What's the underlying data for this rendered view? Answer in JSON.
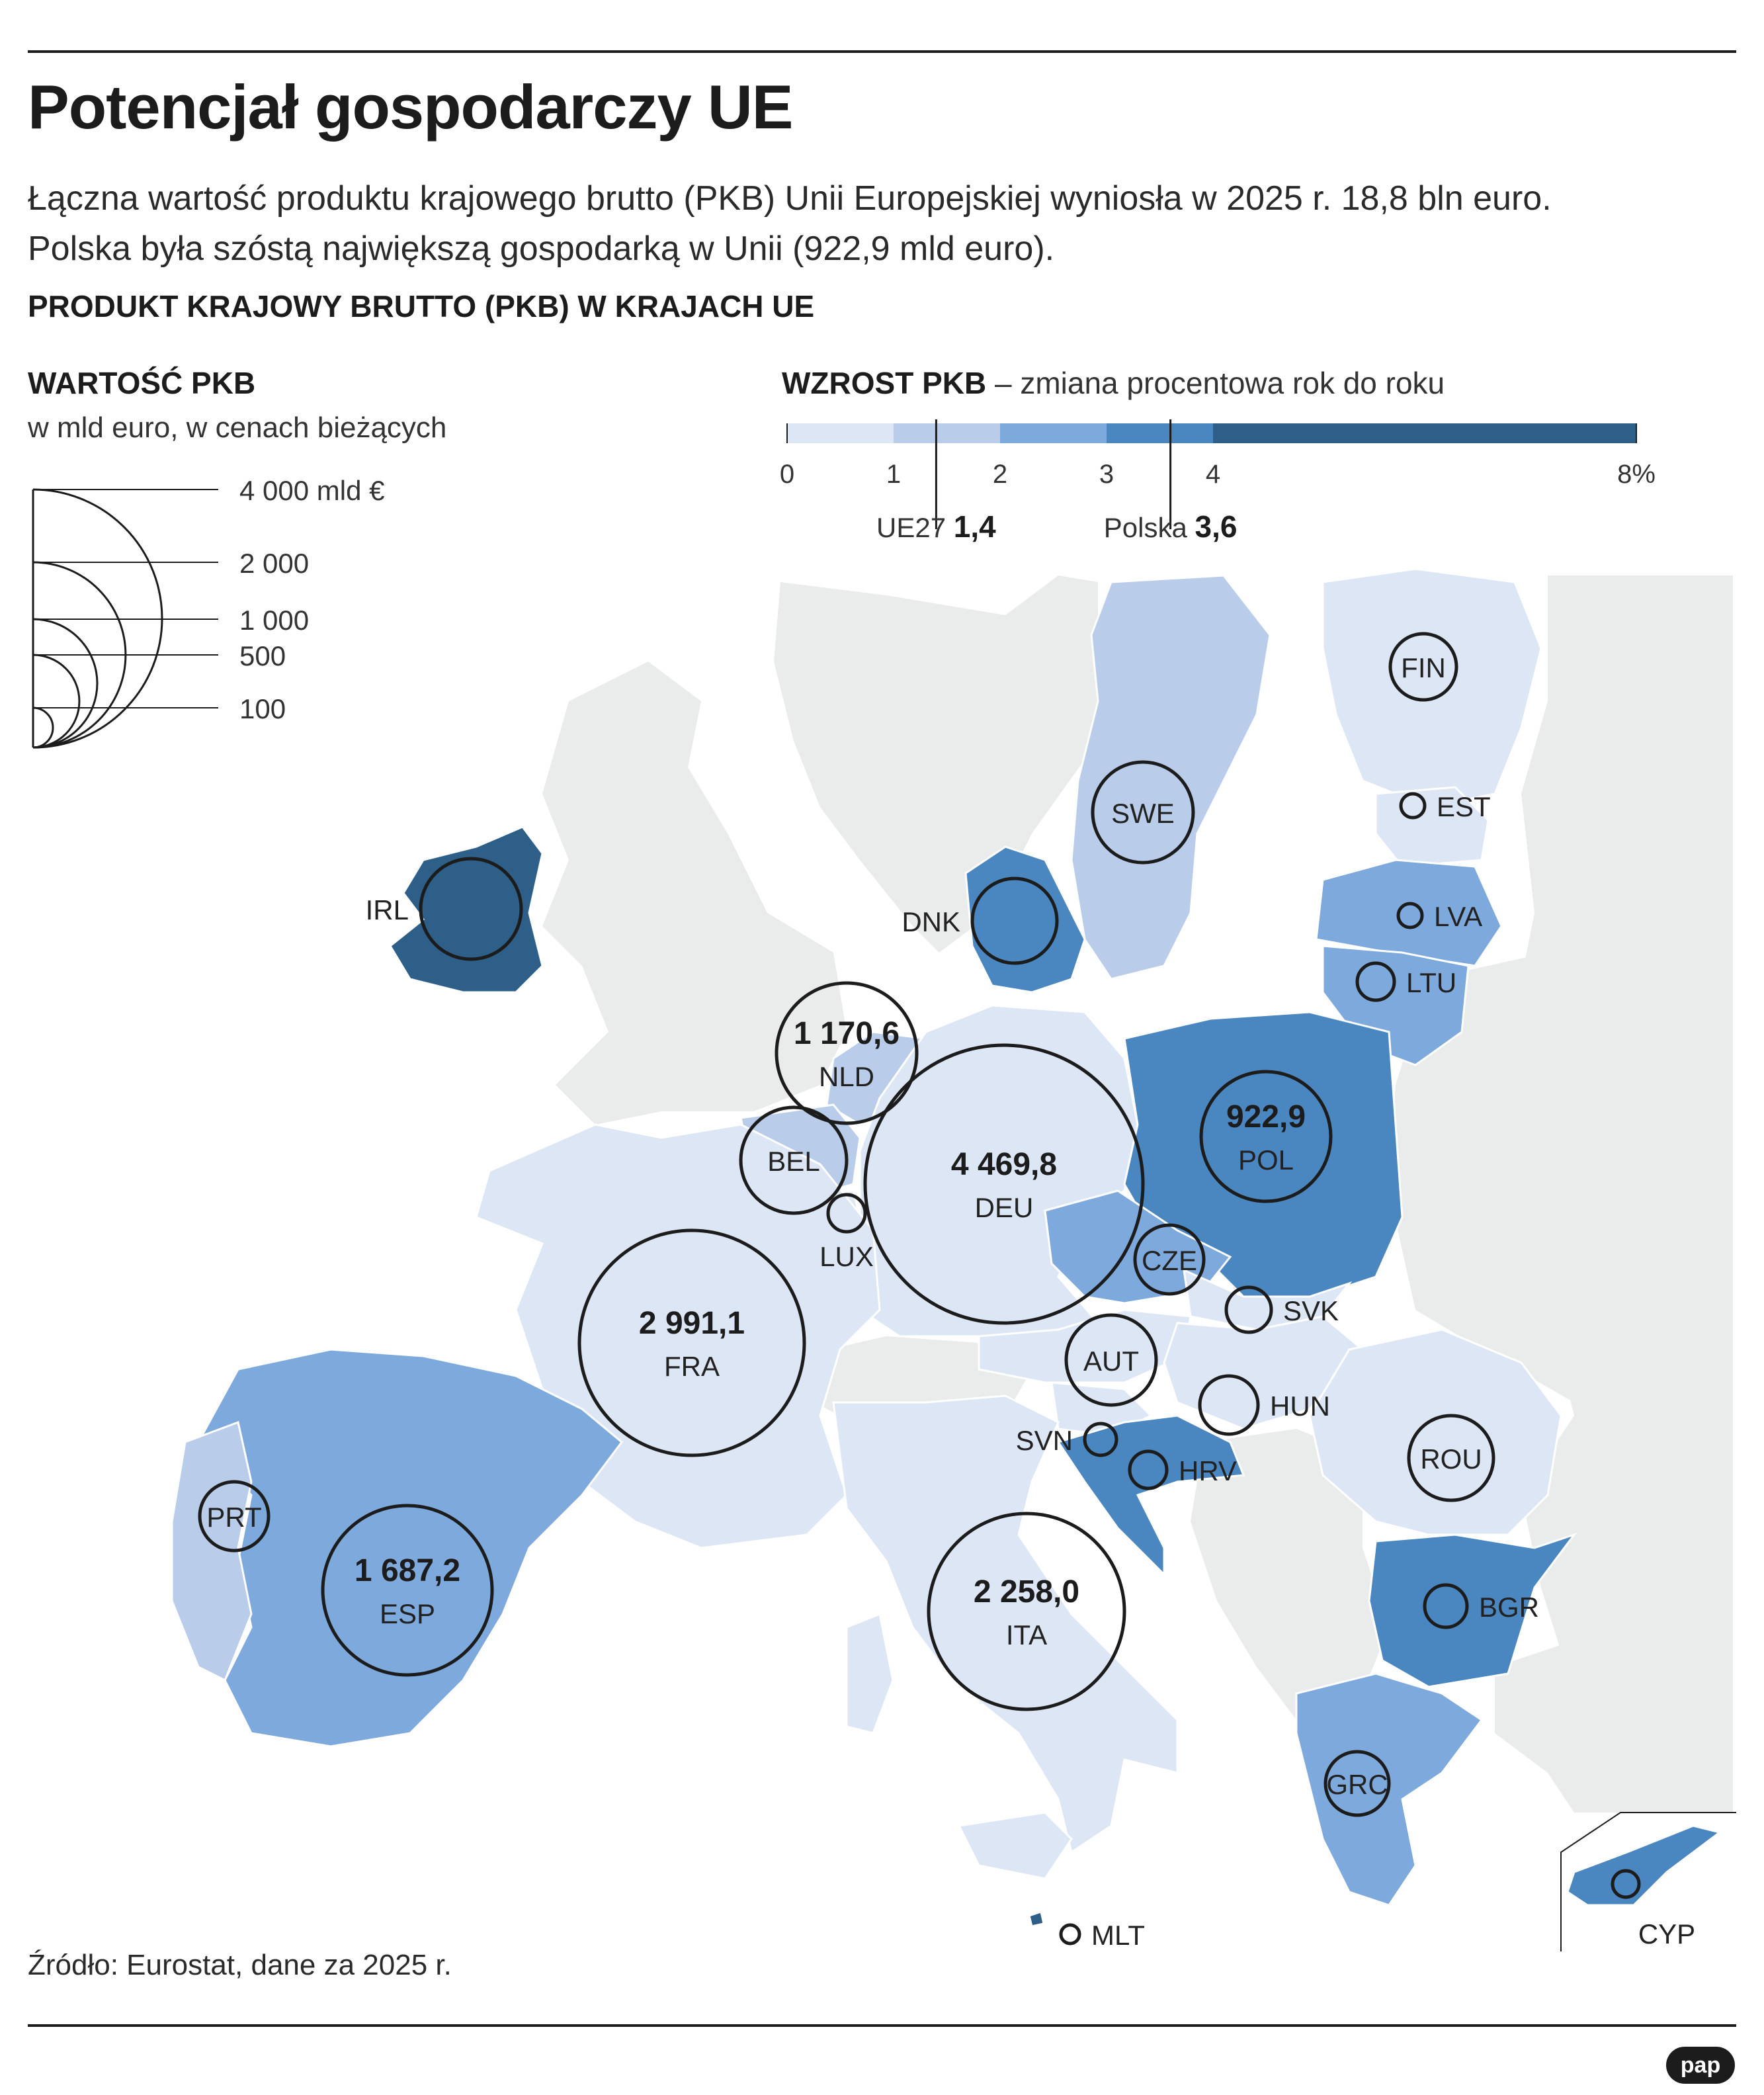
{
  "title": "Potencjał gospodarczy UE",
  "lead": [
    "Łączna wartość produktu krajowego brutto (PKB) Unii Europejskiej wyniosła w 2025 r. 18,8 bln euro.",
    "Polska była szóstą największą gospodarką w Unii (922,9 mld euro)."
  ],
  "section_title": "PRODUKT KRAJOWY BRUTTO (PKB) W KRAJACH UE",
  "size_legend": {
    "title": "WARTOŚĆ PKB",
    "subtitle": "w mld euro, w cenach bieżących",
    "items": [
      {
        "value": 4000,
        "label": "4 000 mld €"
      },
      {
        "value": 2000,
        "label": "2 000"
      },
      {
        "value": 1000,
        "label": "1 000"
      },
      {
        "value": 500,
        "label": "500"
      },
      {
        "value": 100,
        "label": "100"
      }
    ]
  },
  "color_legend": {
    "title": "WZROST PKB",
    "subtitle": "– zmiana procentowa rok do roku",
    "ticks": [
      {
        "value": 0,
        "label": "0"
      },
      {
        "value": 1,
        "label": "1"
      },
      {
        "value": 2,
        "label": "2"
      },
      {
        "value": 3,
        "label": "3"
      },
      {
        "value": 4,
        "label": "4"
      },
      {
        "value": 8,
        "label": "8%"
      }
    ],
    "classes": [
      {
        "from": 0,
        "to": 1,
        "color": "#dde6f5"
      },
      {
        "from": 1,
        "to": 2,
        "color": "#b9cdea"
      },
      {
        "from": 2,
        "to": 3,
        "color": "#7ea9dc"
      },
      {
        "from": 3,
        "to": 4,
        "color": "#4a86c0"
      },
      {
        "from": 4,
        "to": 8,
        "color": "#2d5f88"
      }
    ],
    "markers": [
      {
        "value": 1.4,
        "name": "UE27",
        "value_label": "1,4"
      },
      {
        "value": 3.6,
        "name": "Polska",
        "value_label": "3,6"
      }
    ]
  },
  "countries": [
    {
      "code": "FIN",
      "gdp_label": "",
      "growth_class": 0
    },
    {
      "code": "SWE",
      "gdp_label": "",
      "growth_class": 1
    },
    {
      "code": "EST",
      "gdp_label": "",
      "growth_class": 0
    },
    {
      "code": "LVA",
      "gdp_label": "",
      "growth_class": 2
    },
    {
      "code": "LTU",
      "gdp_label": "",
      "growth_class": 2
    },
    {
      "code": "DNK",
      "gdp_label": "",
      "growth_class": 3
    },
    {
      "code": "IRL",
      "gdp_label": "",
      "growth_class": 4
    },
    {
      "code": "NLD",
      "gdp_label": "1 170,6",
      "growth_class": 1
    },
    {
      "code": "BEL",
      "gdp_label": "",
      "growth_class": 1
    },
    {
      "code": "LUX",
      "gdp_label": "",
      "growth_class": 0
    },
    {
      "code": "DEU",
      "gdp_label": "4 469,8",
      "growth_class": 0
    },
    {
      "code": "POL",
      "gdp_label": "922,9",
      "growth_class": 3
    },
    {
      "code": "CZE",
      "gdp_label": "",
      "growth_class": 2
    },
    {
      "code": "SVK",
      "gdp_label": "",
      "growth_class": 0
    },
    {
      "code": "AUT",
      "gdp_label": "",
      "growth_class": 0
    },
    {
      "code": "HUN",
      "gdp_label": "",
      "growth_class": 0
    },
    {
      "code": "SVN",
      "gdp_label": "",
      "growth_class": 0
    },
    {
      "code": "HRV",
      "gdp_label": "",
      "growth_class": 3
    },
    {
      "code": "ROU",
      "gdp_label": "",
      "growth_class": 0
    },
    {
      "code": "BGR",
      "gdp_label": "",
      "growth_class": 3
    },
    {
      "code": "FRA",
      "gdp_label": "2 991,1",
      "growth_class": 0
    },
    {
      "code": "ESP",
      "gdp_label": "1 687,2",
      "growth_class": 2
    },
    {
      "code": "PRT",
      "gdp_label": "",
      "growth_class": 1
    },
    {
      "code": "ITA",
      "gdp_label": "2 258,0",
      "growth_class": 0
    },
    {
      "code": "GRC",
      "gdp_label": "",
      "growth_class": 2
    },
    {
      "code": "MLT",
      "gdp_label": "",
      "growth_class": 4
    },
    {
      "code": "CYP",
      "gdp_label": "",
      "growth_class": 3
    }
  ],
  "colors": {
    "non_eu_land": "#e9eceb",
    "sea": "#ffffff",
    "ink": "#1c1c1c"
  },
  "source": "Źródło: Eurostat, dane za 2025 r.",
  "logo": "pap"
}
